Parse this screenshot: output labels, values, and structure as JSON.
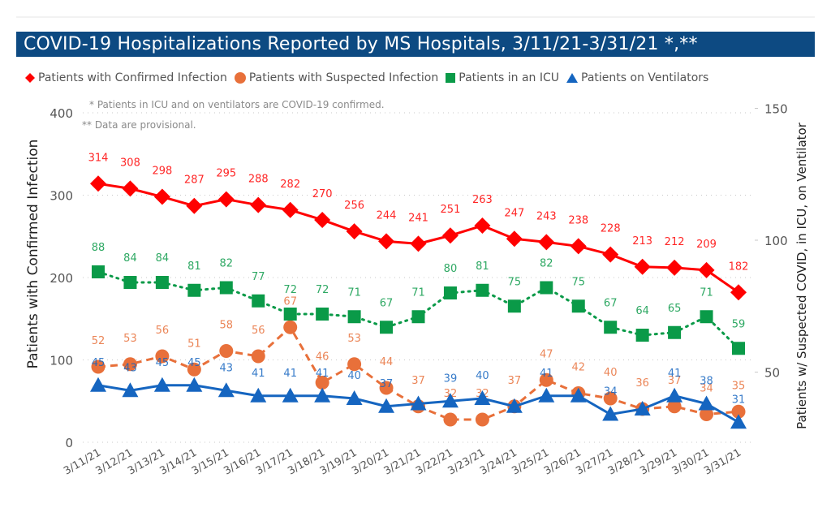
{
  "header": {
    "title": "COVID-19 Hospitalizations Reported by MS Hospitals, 3/11/21-3/31/21 *,**"
  },
  "legend": [
    {
      "label": "Patients with Confirmed Infection",
      "marker": "diamond",
      "color": "#ff0000"
    },
    {
      "label": "Patients with Suspected Infection",
      "marker": "circle",
      "color": "#e8703a"
    },
    {
      "label": "Patients in an ICU",
      "marker": "square",
      "color": "#0a9a48"
    },
    {
      "label": "Patients on Ventilators",
      "marker": "triangle",
      "color": "#1565c0"
    }
  ],
  "notes": [
    "* Patients in ICU and on ventilators are COVID-19 confirmed.",
    "** Data are provisional."
  ],
  "chart_data": {
    "type": "line",
    "title": "COVID-19 Hospitalizations Reported by MS Hospitals, 3/11/21-3/31/21 *,**",
    "xlabel": "",
    "ylabel": "Patients with Confirmed Infection",
    "y2label": "Patients w/ Suspected COVID, in ICU, on Ventilator",
    "ylim": [
      0,
      400
    ],
    "y2lim": [
      23.4,
      150
    ],
    "yticks": [
      "0",
      "100",
      "200",
      "300",
      "400"
    ],
    "y2ticks": [
      "50",
      "100",
      "150"
    ],
    "grid": true,
    "legend_position": "top-left",
    "categories": [
      "3/11/21",
      "3/12/21",
      "3/13/21",
      "3/14/21",
      "3/15/21",
      "3/16/21",
      "3/17/21",
      "3/18/21",
      "3/19/21",
      "3/20/21",
      "3/21/21",
      "3/22/21",
      "3/23/21",
      "3/24/21",
      "3/25/21",
      "3/26/21",
      "3/27/21",
      "3/28/21",
      "3/29/21",
      "3/30/21",
      "3/31/21"
    ],
    "series": [
      {
        "name": "Patients with Confirmed Infection",
        "axis": "left",
        "color": "#ff0000",
        "marker": "diamond",
        "line": "solid",
        "values": [
          314,
          308,
          298,
          287,
          295,
          288,
          282,
          270,
          256,
          244,
          241,
          251,
          263,
          247,
          243,
          238,
          228,
          213,
          212,
          209,
          182
        ],
        "labels": [
          "314",
          "308",
          "298",
          "287",
          "295",
          "288",
          "282",
          "270",
          "256",
          "244",
          "241",
          "251",
          "263",
          "247",
          "243",
          "238",
          "228",
          "213",
          "212",
          "209",
          "182"
        ]
      },
      {
        "name": "Patients in an ICU",
        "axis": "right",
        "color": "#0a9a48",
        "marker": "square",
        "line": "dotted",
        "values": [
          88,
          84,
          84,
          81,
          82,
          77,
          72,
          72,
          71,
          67,
          71,
          80,
          81,
          75,
          82,
          75,
          67,
          64,
          65,
          71,
          59
        ],
        "labels": [
          "88",
          "84",
          "84",
          "81",
          "82",
          "77",
          "72",
          "72",
          "71",
          "67",
          "71",
          "80",
          "81",
          "75",
          "82",
          "75",
          "67",
          "64",
          "65",
          "71",
          "59"
        ]
      },
      {
        "name": "Patients with Suspected Infection",
        "axis": "right",
        "color": "#e8703a",
        "marker": "circle",
        "line": "dashed",
        "values": [
          52,
          53,
          56,
          51,
          58,
          56,
          67,
          46,
          53,
          44,
          37,
          32,
          32,
          37,
          47,
          42,
          40,
          36,
          37,
          34,
          35
        ],
        "labels": [
          "52",
          "53",
          "56",
          "51",
          "58",
          "56",
          "67",
          "46",
          "53",
          "44",
          "37",
          "32",
          "32",
          "37",
          "47",
          "42",
          "40",
          "36",
          "37",
          "34",
          "35"
        ]
      },
      {
        "name": "Patients on Ventilators",
        "axis": "right",
        "color": "#1565c0",
        "marker": "triangle",
        "line": "solid",
        "values": [
          45,
          43,
          45,
          45,
          43,
          41,
          41,
          41,
          40,
          37,
          38,
          39,
          40,
          37,
          41,
          41,
          34,
          36,
          41,
          38,
          31
        ],
        "labels": [
          "45",
          "43",
          "45",
          "45",
          "43",
          "41",
          "41",
          "41",
          "40",
          "37",
          "",
          "39",
          "40",
          "",
          "41",
          "",
          "34",
          "",
          "41",
          "38",
          "31"
        ]
      }
    ]
  }
}
